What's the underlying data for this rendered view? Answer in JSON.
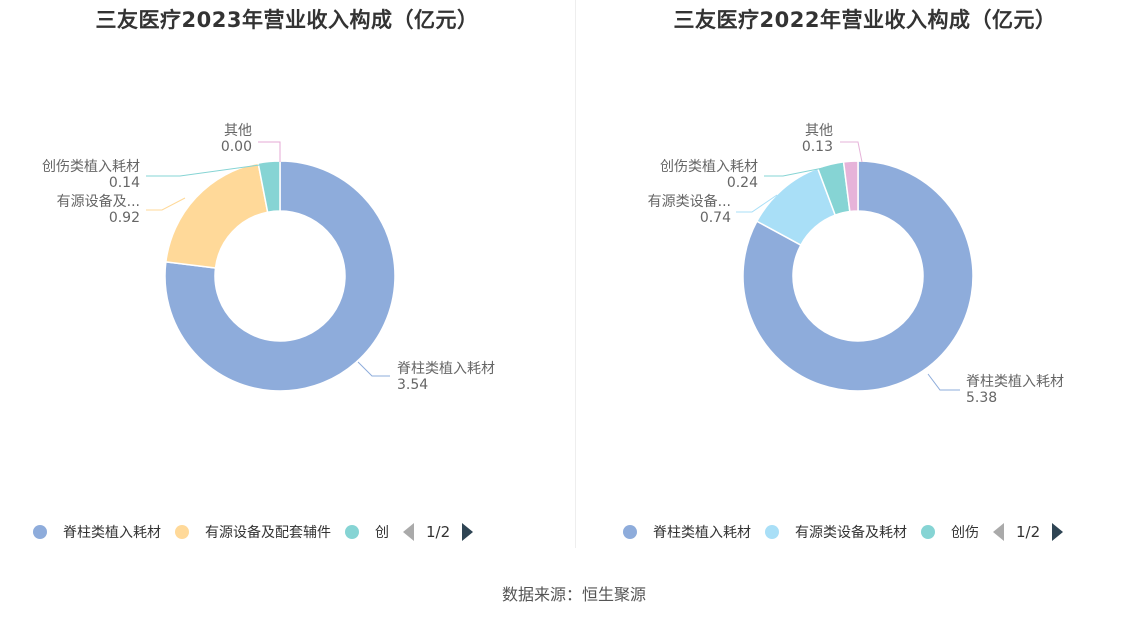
{
  "source": "数据来源：恒生聚源",
  "chart_data": [
    {
      "type": "pie",
      "title": "三友医疗2023年营业收入构成（亿元）",
      "series": [
        {
          "name": "脊柱类植入耗材",
          "label": "脊柱类植入耗材",
          "value": 3.54,
          "value_text": "3.54",
          "color": "#8eacdb"
        },
        {
          "name": "有源设备及配套辅件",
          "label": "有源设备及...",
          "value": 0.92,
          "value_text": "0.92",
          "color": "#ffd999"
        },
        {
          "name": "创伤类植入耗材",
          "label": "创伤类植入耗材",
          "value": 0.14,
          "value_text": "0.14",
          "color": "#86d4d4"
        },
        {
          "name": "其他",
          "label": "其他",
          "value": 0.0,
          "value_text": "0.00",
          "color": "#e6a8d4"
        }
      ],
      "legend": [
        "脊柱类植入耗材",
        "有源设备及配套辅件",
        "创"
      ],
      "legend_page": "1/2",
      "legend_placement": "bottom"
    },
    {
      "type": "pie",
      "title": "三友医疗2022年营业收入构成（亿元）",
      "series": [
        {
          "name": "脊柱类植入耗材",
          "label": "脊柱类植入耗材",
          "value": 5.38,
          "value_text": "5.38",
          "color": "#8eacdb"
        },
        {
          "name": "有源类设备及耗材",
          "label": "有源类设备...",
          "value": 0.74,
          "value_text": "0.74",
          "color": "#a9dff7"
        },
        {
          "name": "创伤类植入耗材",
          "label": "创伤类植入耗材",
          "value": 0.24,
          "value_text": "0.24",
          "color": "#86d4d4"
        },
        {
          "name": "其他",
          "label": "其他",
          "value": 0.13,
          "value_text": "0.13",
          "color": "#e6b3d9"
        }
      ],
      "legend": [
        "脊柱类植入耗材",
        "有源类设备及耗材",
        "创伤"
      ],
      "legend_page": "1/2",
      "legend_placement": "bottom"
    }
  ]
}
